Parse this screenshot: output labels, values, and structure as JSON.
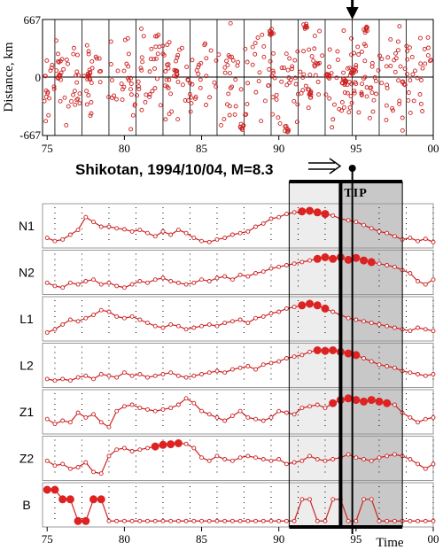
{
  "colors": {
    "data": "#cc2222",
    "fill_dot": "#dd2222",
    "frame": "#000000",
    "panel_border": "#999999",
    "tip_light": "#ededed",
    "tip_dark": "#c8c8c8"
  },
  "chart_data": [
    {
      "type": "scatter",
      "ylabel": "Distance, km",
      "ylim": [
        -667,
        667
      ],
      "ytick_labels": [
        "667",
        "0",
        "-667"
      ],
      "xlim": [
        1974.7,
        2000
      ],
      "xtick_labels": [
        "75",
        "80",
        "85",
        "90",
        "95",
        "00"
      ],
      "arrow_at": 1994.76,
      "note": ""
    },
    {
      "type": "line",
      "title": "Shikotan, 1994/10/04, M=8.3",
      "tip_label": "TIP",
      "xlabel": "Time",
      "xlim": [
        1974.7,
        2000
      ],
      "xtick_labels": [
        "75",
        "80",
        "85",
        "90",
        "95",
        "00"
      ],
      "tip_light_range": [
        1990.67,
        1994.0
      ],
      "tip_dark_range": [
        1994.0,
        1998.0
      ],
      "earthquake_time": 1994.76,
      "series": [
        {
          "name": "N1",
          "start": 1975.0,
          "step": 0.5,
          "alarm_from": 1991.5,
          "alarm_to": 1993.0,
          "values": [
            0.15,
            0.05,
            0.1,
            0.25,
            0.4,
            0.8,
            0.65,
            0.5,
            0.5,
            0.45,
            0.42,
            0.35,
            0.4,
            0.3,
            0.2,
            0.35,
            0.25,
            0.4,
            0.3,
            0.15,
            0.05,
            0.02,
            0.1,
            0.15,
            0.25,
            0.3,
            0.35,
            0.5,
            0.6,
            0.75,
            0.8,
            0.9,
            0.95,
            0.98,
            1.0,
            0.95,
            0.9,
            0.85,
            0.75,
            0.7,
            0.65,
            0.55,
            0.45,
            0.35,
            0.3,
            0.2,
            0.1,
            0.15,
            0.05,
            0.12,
            0.02
          ]
        },
        {
          "name": "N2",
          "start": 1975.0,
          "step": 0.5,
          "alarm_from": 1992.5,
          "alarm_to": 1996.0,
          "values": [
            0.2,
            0.1,
            0.05,
            0.2,
            0.15,
            0.25,
            0.3,
            0.15,
            0.2,
            0.1,
            0.05,
            0.15,
            0.25,
            0.2,
            0.3,
            0.35,
            0.25,
            0.2,
            0.15,
            0.2,
            0.3,
            0.25,
            0.35,
            0.4,
            0.3,
            0.45,
            0.4,
            0.5,
            0.55,
            0.65,
            0.7,
            0.75,
            0.8,
            0.85,
            0.9,
            0.95,
            1.0,
            0.95,
            1.0,
            0.92,
            0.98,
            0.9,
            0.85,
            0.8,
            0.75,
            0.7,
            0.6,
            0.5,
            0.25,
            0.15,
            0.3
          ]
        },
        {
          "name": "L1",
          "start": 1975.0,
          "step": 0.5,
          "alarm_from": 1991.5,
          "alarm_to": 1993.0,
          "values": [
            0.1,
            0.2,
            0.35,
            0.5,
            0.45,
            0.55,
            0.65,
            0.8,
            0.75,
            0.6,
            0.55,
            0.6,
            0.5,
            0.4,
            0.3,
            0.25,
            0.35,
            0.3,
            0.2,
            0.25,
            0.3,
            0.35,
            0.3,
            0.4,
            0.45,
            0.5,
            0.4,
            0.55,
            0.6,
            0.7,
            0.75,
            0.85,
            0.9,
            0.95,
            1.0,
            0.95,
            0.85,
            0.75,
            0.65,
            0.55,
            0.5,
            0.45,
            0.4,
            0.35,
            0.3,
            0.25,
            0.2,
            0.15,
            0.25,
            0.2,
            0.15
          ]
        },
        {
          "name": "L2",
          "start": 1975.0,
          "step": 0.5,
          "alarm_from": 1992.5,
          "alarm_to": 1995.0,
          "values": [
            0.1,
            0.05,
            0.1,
            0.05,
            0.15,
            0.2,
            0.1,
            0.25,
            0.2,
            0.15,
            0.3,
            0.2,
            0.25,
            0.15,
            0.2,
            0.25,
            0.3,
            0.2,
            0.15,
            0.2,
            0.25,
            0.3,
            0.35,
            0.3,
            0.4,
            0.45,
            0.5,
            0.4,
            0.55,
            0.6,
            0.65,
            0.75,
            0.8,
            0.85,
            0.95,
            1.0,
            0.98,
            1.0,
            0.95,
            0.9,
            0.85,
            0.75,
            0.65,
            0.55,
            0.5,
            0.45,
            0.35,
            0.3,
            0.25,
            0.2,
            0.25
          ]
        },
        {
          "name": "Z1",
          "start": 1975.0,
          "step": 0.5,
          "alarm_from": 1993.5,
          "alarm_to": 1997.0,
          "values": [
            0.3,
            0.15,
            0.25,
            0.2,
            0.5,
            0.35,
            0.45,
            0.2,
            0.05,
            0.55,
            0.7,
            0.75,
            0.65,
            0.6,
            0.55,
            0.6,
            0.65,
            0.75,
            0.95,
            0.8,
            0.55,
            0.45,
            0.35,
            0.25,
            0.4,
            0.55,
            0.35,
            0.3,
            0.25,
            0.35,
            0.55,
            0.5,
            0.45,
            0.65,
            0.7,
            0.75,
            0.65,
            0.8,
            0.9,
            0.95,
            0.9,
            0.85,
            0.9,
            0.85,
            0.8,
            0.75,
            0.5,
            0.35,
            0.2,
            0.3,
            0.35
          ]
        },
        {
          "name": "Z2",
          "start": 1975.0,
          "step": 0.5,
          "alarm_from": 1982.0,
          "alarm_to": 1983.5,
          "values": [
            0.45,
            0.3,
            0.35,
            0.2,
            0.25,
            0.4,
            0.1,
            0.05,
            0.6,
            0.8,
            0.85,
            0.75,
            0.8,
            0.85,
            0.9,
            0.95,
            0.97,
            1.0,
            0.98,
            0.85,
            0.55,
            0.45,
            0.6,
            0.5,
            0.45,
            0.55,
            0.6,
            0.55,
            0.5,
            0.45,
            0.5,
            0.35,
            0.4,
            0.45,
            0.6,
            0.5,
            0.45,
            0.5,
            0.55,
            0.65,
            0.55,
            0.5,
            0.45,
            0.55,
            0.6,
            0.65,
            0.6,
            0.5,
            0.35,
            0.2,
            0.35
          ]
        },
        {
          "name": "B",
          "start": 1975.0,
          "step": 0.5,
          "alarm_from": 1975.0,
          "alarm_to": 1978.5,
          "values": [
            1.0,
            1.0,
            0.7,
            0.7,
            0.02,
            0.02,
            0.7,
            0.7,
            0.02,
            0.02,
            0.02,
            0.02,
            0.02,
            0.02,
            0.02,
            0.02,
            0.02,
            0.02,
            0.02,
            0.02,
            0.02,
            0.02,
            0.02,
            0.02,
            0.02,
            0.02,
            0.02,
            0.02,
            0.02,
            0.02,
            0.02,
            0.02,
            0.02,
            0.7,
            0.7,
            0.02,
            0.02,
            0.7,
            0.7,
            0.02,
            0.02,
            0.7,
            0.7,
            0.02,
            0.02,
            0.02,
            0.02,
            0.02,
            0.02,
            0.02,
            0.02
          ]
        }
      ]
    }
  ]
}
